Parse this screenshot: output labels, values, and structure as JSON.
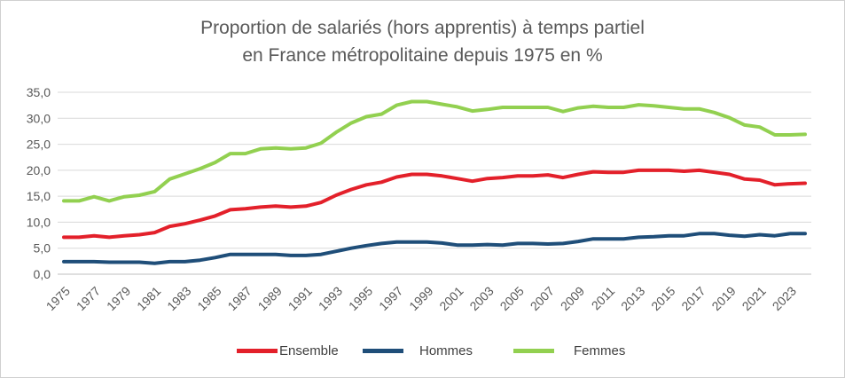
{
  "chart_data": {
    "type": "line",
    "title": "Proportion de salariés (hors apprentis) à temps partiel",
    "subtitle": "en France métropolitaine depuis 1975 en %",
    "xlabel": "",
    "ylabel": "",
    "ylim": [
      0,
      35
    ],
    "yticks": [
      "0,0",
      "5,0",
      "10,0",
      "15,0",
      "20,0",
      "25,0",
      "30,0",
      "35,0"
    ],
    "grid": true,
    "legend": "bottom",
    "x": [
      1975,
      1976,
      1977,
      1978,
      1979,
      1980,
      1981,
      1982,
      1983,
      1984,
      1985,
      1986,
      1987,
      1988,
      1989,
      1990,
      1991,
      1992,
      1993,
      1994,
      1995,
      1996,
      1997,
      1998,
      1999,
      2000,
      2001,
      2002,
      2003,
      2004,
      2005,
      2006,
      2007,
      2008,
      2009,
      2010,
      2011,
      2012,
      2013,
      2014,
      2015,
      2016,
      2017,
      2018,
      2019,
      2020,
      2021,
      2022,
      2023,
      2024
    ],
    "xtick_labels": [
      "1975",
      "1977",
      "1979",
      "1981",
      "1983",
      "1985",
      "1987",
      "1989",
      "1991",
      "1993",
      "1995",
      "1997",
      "1999",
      "2001",
      "2003",
      "2005",
      "2007",
      "2009",
      "2011",
      "2013",
      "2015",
      "2017",
      "2019",
      "2021",
      "2023"
    ],
    "series": [
      {
        "name": "Ensemble",
        "color": "#e3202a",
        "values": [
          7.1,
          7.1,
          7.4,
          7.1,
          7.4,
          7.6,
          8.0,
          9.2,
          9.7,
          10.4,
          11.2,
          12.4,
          12.6,
          12.9,
          13.1,
          12.9,
          13.1,
          13.8,
          15.2,
          16.3,
          17.2,
          17.7,
          18.7,
          19.2,
          19.2,
          18.9,
          18.4,
          17.9,
          18.4,
          18.6,
          18.9,
          18.9,
          19.1,
          18.6,
          19.2,
          19.7,
          19.6,
          19.6,
          20.0,
          20.0,
          20.0,
          19.8,
          20.0,
          19.6,
          19.2,
          18.3,
          18.1,
          17.2,
          17.4,
          17.5
        ]
      },
      {
        "name": "Hommes",
        "color": "#1f4e79",
        "values": [
          2.4,
          2.4,
          2.4,
          2.3,
          2.3,
          2.3,
          2.1,
          2.4,
          2.4,
          2.7,
          3.2,
          3.8,
          3.8,
          3.8,
          3.8,
          3.6,
          3.6,
          3.8,
          4.4,
          5.0,
          5.5,
          5.9,
          6.2,
          6.2,
          6.2,
          6.0,
          5.6,
          5.6,
          5.7,
          5.6,
          5.9,
          5.9,
          5.8,
          5.9,
          6.3,
          6.8,
          6.8,
          6.8,
          7.1,
          7.2,
          7.4,
          7.4,
          7.8,
          7.8,
          7.5,
          7.3,
          7.6,
          7.4,
          7.8,
          7.8
        ]
      },
      {
        "name": "Femmes",
        "color": "#92d050",
        "values": [
          14.1,
          14.1,
          14.9,
          14.1,
          14.9,
          15.2,
          15.9,
          18.3,
          19.3,
          20.3,
          21.5,
          23.2,
          23.2,
          24.1,
          24.3,
          24.1,
          24.3,
          25.2,
          27.3,
          29.1,
          30.3,
          30.8,
          32.5,
          33.2,
          33.2,
          32.7,
          32.2,
          31.4,
          31.7,
          32.1,
          32.1,
          32.1,
          32.1,
          31.3,
          32.0,
          32.3,
          32.1,
          32.1,
          32.6,
          32.4,
          32.1,
          31.8,
          31.8,
          31.1,
          30.1,
          28.7,
          28.3,
          26.8,
          26.8,
          26.9
        ]
      }
    ]
  }
}
